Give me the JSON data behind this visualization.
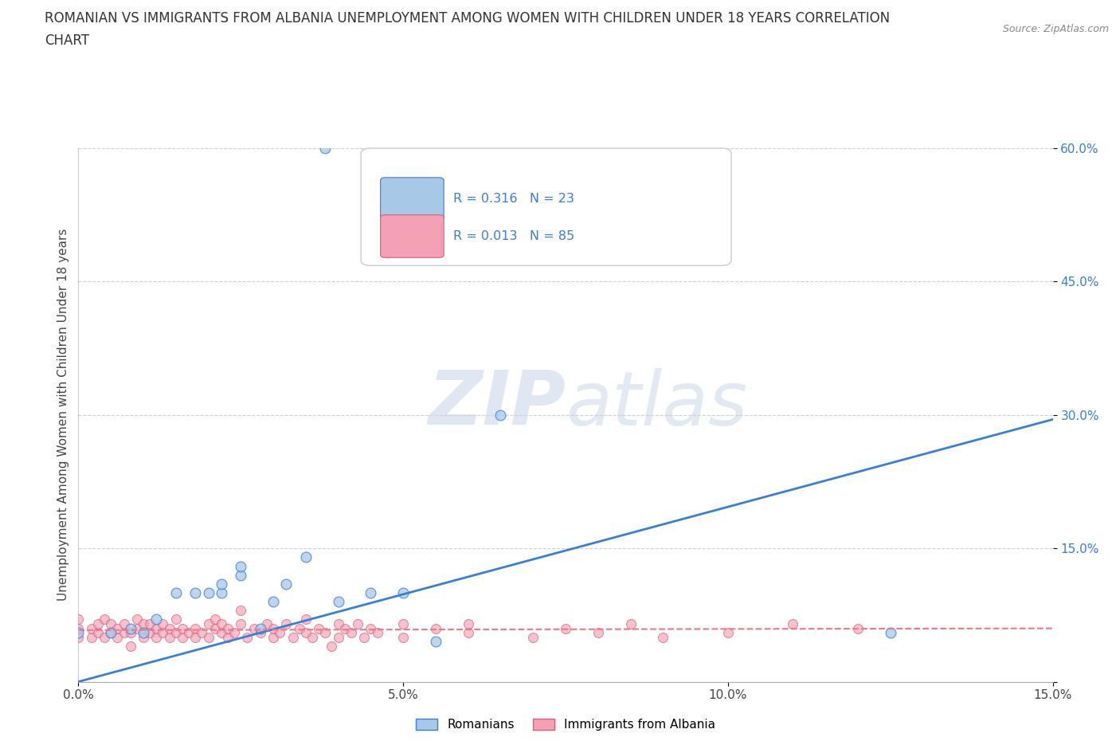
{
  "title_line1": "ROMANIAN VS IMMIGRANTS FROM ALBANIA UNEMPLOYMENT AMONG WOMEN WITH CHILDREN UNDER 18 YEARS CORRELATION",
  "title_line2": "CHART",
  "source": "Source: ZipAtlas.com",
  "ylabel": "Unemployment Among Women with Children Under 18 years",
  "xlim": [
    0,
    0.15
  ],
  "ylim": [
    0,
    0.6
  ],
  "xtick_labels": [
    "0.0%",
    "5.0%",
    "10.0%",
    "15.0%"
  ],
  "ytick_labels": [
    "",
    "15.0%",
    "30.0%",
    "45.0%",
    "60.0%"
  ],
  "watermark": "ZIPatlas",
  "color_romanian": "#a8c8e8",
  "color_albanian": "#f4a0b5",
  "color_line_romanian": "#3a7fd5",
  "color_line_albanian": "#e87a8a",
  "rom_trend_x0": 0.0,
  "rom_trend_y0": 0.0,
  "rom_trend_x1": 0.15,
  "rom_trend_y1": 0.295,
  "alb_trend_x0": 0.0,
  "alb_trend_y0": 0.058,
  "alb_trend_x1": 0.15,
  "alb_trend_y1": 0.06,
  "romanians_x": [
    0.038,
    0.0,
    0.005,
    0.008,
    0.01,
    0.012,
    0.015,
    0.018,
    0.02,
    0.022,
    0.022,
    0.025,
    0.025,
    0.028,
    0.03,
    0.032,
    0.035,
    0.04,
    0.045,
    0.05,
    0.055,
    0.125,
    0.065
  ],
  "romanians_y": [
    0.6,
    0.055,
    0.055,
    0.06,
    0.055,
    0.07,
    0.1,
    0.1,
    0.1,
    0.1,
    0.11,
    0.12,
    0.13,
    0.06,
    0.09,
    0.11,
    0.14,
    0.09,
    0.1,
    0.1,
    0.045,
    0.055,
    0.3
  ],
  "albanians_x": [
    0.0,
    0.0,
    0.0,
    0.002,
    0.002,
    0.003,
    0.003,
    0.004,
    0.004,
    0.005,
    0.005,
    0.006,
    0.006,
    0.007,
    0.007,
    0.008,
    0.008,
    0.009,
    0.009,
    0.01,
    0.01,
    0.011,
    0.011,
    0.012,
    0.012,
    0.013,
    0.013,
    0.014,
    0.014,
    0.015,
    0.015,
    0.016,
    0.016,
    0.017,
    0.018,
    0.018,
    0.019,
    0.02,
    0.02,
    0.021,
    0.021,
    0.022,
    0.022,
    0.023,
    0.023,
    0.024,
    0.025,
    0.025,
    0.026,
    0.027,
    0.028,
    0.029,
    0.03,
    0.03,
    0.031,
    0.032,
    0.033,
    0.034,
    0.035,
    0.035,
    0.036,
    0.037,
    0.038,
    0.039,
    0.04,
    0.04,
    0.041,
    0.042,
    0.043,
    0.044,
    0.045,
    0.046,
    0.05,
    0.05,
    0.055,
    0.06,
    0.06,
    0.07,
    0.075,
    0.08,
    0.085,
    0.09,
    0.1,
    0.11,
    0.12
  ],
  "albanians_y": [
    0.05,
    0.06,
    0.07,
    0.05,
    0.06,
    0.055,
    0.065,
    0.05,
    0.07,
    0.055,
    0.065,
    0.05,
    0.06,
    0.055,
    0.065,
    0.04,
    0.055,
    0.06,
    0.07,
    0.05,
    0.065,
    0.055,
    0.065,
    0.05,
    0.06,
    0.055,
    0.065,
    0.05,
    0.06,
    0.055,
    0.07,
    0.05,
    0.06,
    0.055,
    0.06,
    0.05,
    0.055,
    0.065,
    0.05,
    0.06,
    0.07,
    0.055,
    0.065,
    0.05,
    0.06,
    0.055,
    0.065,
    0.08,
    0.05,
    0.06,
    0.055,
    0.065,
    0.05,
    0.06,
    0.055,
    0.065,
    0.05,
    0.06,
    0.055,
    0.07,
    0.05,
    0.06,
    0.055,
    0.04,
    0.065,
    0.05,
    0.06,
    0.055,
    0.065,
    0.05,
    0.06,
    0.055,
    0.065,
    0.05,
    0.06,
    0.055,
    0.065,
    0.05,
    0.06,
    0.055,
    0.065,
    0.05,
    0.055,
    0.065,
    0.06
  ]
}
